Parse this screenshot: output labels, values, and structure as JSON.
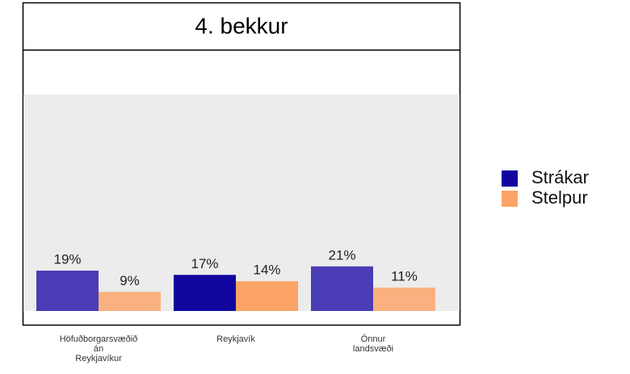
{
  "chart_data": {
    "type": "bar",
    "title": "4. bekkur",
    "categories": [
      "Höfuðborgarsvæðið\nán\nReykjavíkur",
      "Reykjavík",
      "Önnur\nlandsvæði"
    ],
    "series": [
      {
        "name": "Strákar",
        "color": "#10069f",
        "colors": [
          "#4a3db5",
          "#10069f",
          "#4a3db5"
        ],
        "values": [
          19,
          17,
          21
        ],
        "value_labels": [
          "19%",
          "17%",
          "21%"
        ]
      },
      {
        "name": "Stelpur",
        "color": "#fca465",
        "colors": [
          "#f9b27f",
          "#fca465",
          "#f9b27f"
        ],
        "values": [
          9,
          14,
          11
        ],
        "value_labels": [
          "9%",
          "14%",
          "11%"
        ]
      }
    ],
    "ylim": [
      0,
      100
    ],
    "legend": "right"
  }
}
